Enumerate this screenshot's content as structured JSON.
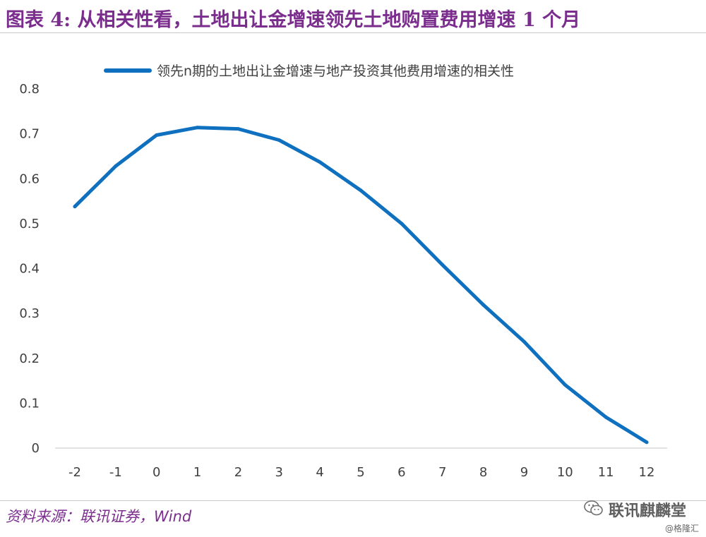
{
  "figure_title": "图表 4: 从相关性看，土地出让金增速领先土地购置费用增速 1 个月",
  "source_note": "资料来源：联讯证券，Wind",
  "watermark_main": "联讯麒麟堂",
  "watermark_sub": "@格隆汇",
  "colors": {
    "title": "#7b2d8e",
    "series": "#0e70be",
    "axis": "#d9d9d9",
    "tick_text": "#404040"
  },
  "chart_data": {
    "type": "line",
    "title": "",
    "xlabel": "",
    "ylabel": "",
    "categories": [
      "-2",
      "-1",
      "0",
      "1",
      "2",
      "3",
      "4",
      "5",
      "6",
      "7",
      "8",
      "9",
      "10",
      "11",
      "12"
    ],
    "series": [
      {
        "name": "领先n期的土地出让金增速与地产投资其他费用增速的相关性",
        "values": [
          0.538,
          0.628,
          0.697,
          0.714,
          0.711,
          0.686,
          0.637,
          0.574,
          0.5,
          0.408,
          0.319,
          0.237,
          0.141,
          0.069,
          0.013
        ]
      }
    ],
    "ylim": [
      0,
      0.8
    ],
    "yticks": [
      "0",
      "0.1",
      "0.2",
      "0.3",
      "0.4",
      "0.5",
      "0.6",
      "0.7",
      "0.8"
    ],
    "grid": false,
    "legend_position": "top"
  }
}
